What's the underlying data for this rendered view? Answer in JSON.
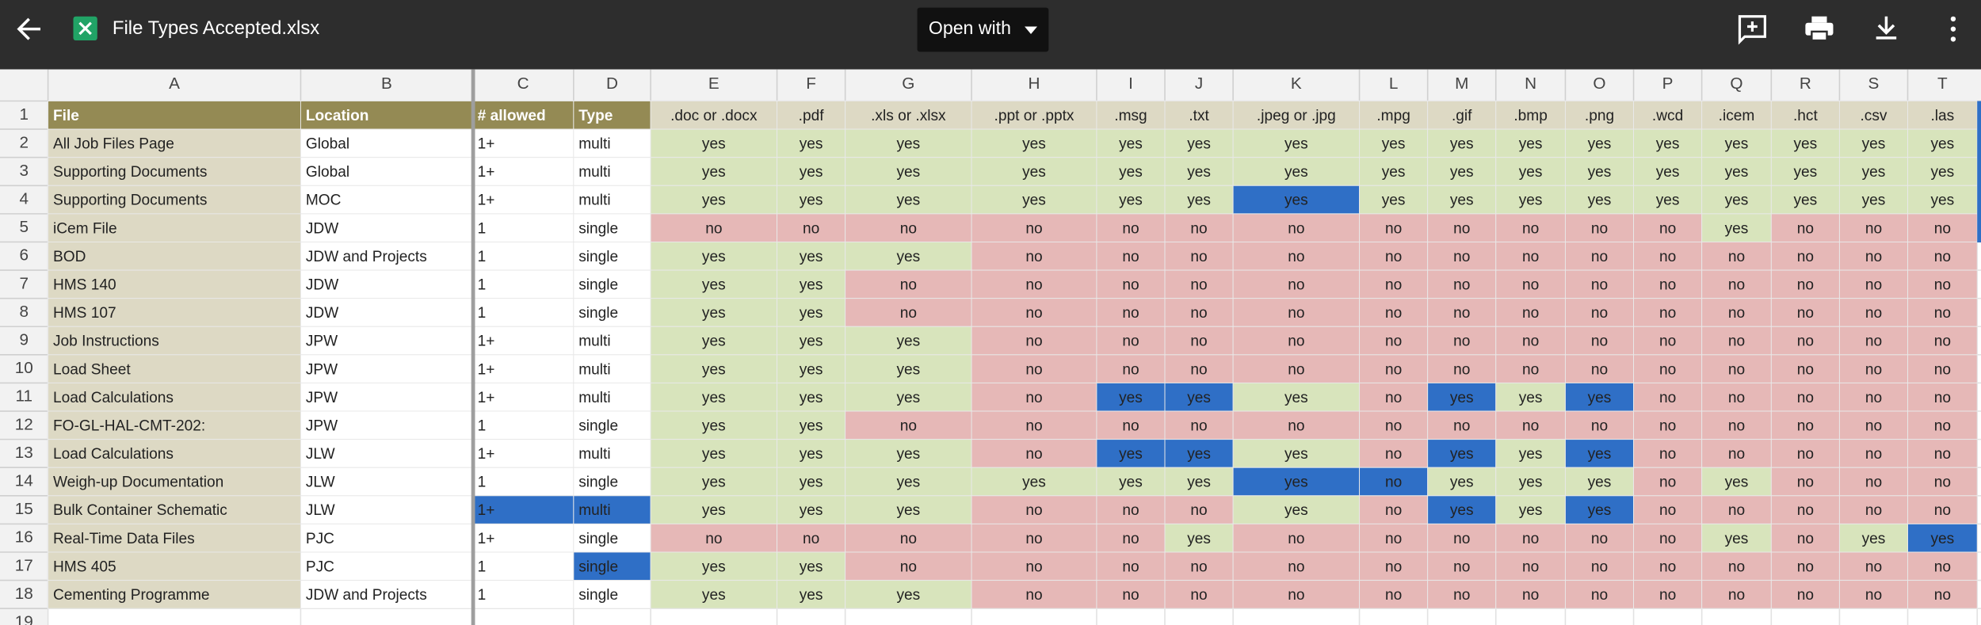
{
  "app_bar": {
    "file_name": "File Types Accepted.xlsx",
    "open_with": "Open with"
  },
  "sheet": {
    "column_letters": [
      "A",
      "B",
      "C",
      "D",
      "E",
      "F",
      "G",
      "H",
      "I",
      "J",
      "K",
      "L",
      "M",
      "N",
      "O",
      "P",
      "Q",
      "R",
      "S",
      "T"
    ],
    "row_numbers": [
      "1",
      "2",
      "3",
      "4",
      "5",
      "6",
      "7",
      "8",
      "9",
      "10",
      "11",
      "12",
      "13",
      "14",
      "15",
      "16",
      "17",
      "18",
      "19"
    ],
    "rows": [
      [
        "File",
        "Location",
        "# allowed",
        "Type",
        ".doc or .docx",
        ".pdf",
        ".xls or .xlsx",
        ".ppt or .pptx",
        ".msg",
        ".txt",
        ".jpeg or .jpg",
        ".mpg",
        ".gif",
        ".bmp",
        ".png",
        ".wcd",
        ".icem",
        ".hct",
        ".csv",
        ".las"
      ],
      [
        "All Job Files Page",
        "Global",
        "1+",
        "multi",
        "yes",
        "yes",
        "yes",
        "yes",
        "yes",
        "yes",
        "yes",
        "yes",
        "yes",
        "yes",
        "yes",
        "yes",
        "yes",
        "yes",
        "yes",
        "yes"
      ],
      [
        "Supporting Documents",
        "Global",
        "1+",
        "multi",
        "yes",
        "yes",
        "yes",
        "yes",
        "yes",
        "yes",
        "yes",
        "yes",
        "yes",
        "yes",
        "yes",
        "yes",
        "yes",
        "yes",
        "yes",
        "yes"
      ],
      [
        "Supporting Documents",
        "MOC",
        "1+",
        "multi",
        "yes",
        "yes",
        "yes",
        "yes",
        "yes",
        "yes",
        "yes",
        "yes",
        "yes",
        "yes",
        "yes",
        "yes",
        "yes",
        "yes",
        "yes",
        "yes"
      ],
      [
        "iCem File",
        "JDW",
        "1",
        "single",
        "no",
        "no",
        "no",
        "no",
        "no",
        "no",
        "no",
        "no",
        "no",
        "no",
        "no",
        "no",
        "yes",
        "no",
        "no",
        "no"
      ],
      [
        "BOD",
        "JDW and Projects",
        "1",
        "single",
        "yes",
        "yes",
        "yes",
        "no",
        "no",
        "no",
        "no",
        "no",
        "no",
        "no",
        "no",
        "no",
        "no",
        "no",
        "no",
        "no"
      ],
      [
        "HMS 140",
        "JDW",
        "1",
        "single",
        "yes",
        "yes",
        "no",
        "no",
        "no",
        "no",
        "no",
        "no",
        "no",
        "no",
        "no",
        "no",
        "no",
        "no",
        "no",
        "no"
      ],
      [
        "HMS 107",
        "JDW",
        "1",
        "single",
        "yes",
        "yes",
        "no",
        "no",
        "no",
        "no",
        "no",
        "no",
        "no",
        "no",
        "no",
        "no",
        "no",
        "no",
        "no",
        "no"
      ],
      [
        "Job Instructions",
        "JPW",
        "1+",
        "multi",
        "yes",
        "yes",
        "yes",
        "no",
        "no",
        "no",
        "no",
        "no",
        "no",
        "no",
        "no",
        "no",
        "no",
        "no",
        "no",
        "no"
      ],
      [
        "Load Sheet",
        "JPW",
        "1+",
        "multi",
        "yes",
        "yes",
        "yes",
        "no",
        "no",
        "no",
        "no",
        "no",
        "no",
        "no",
        "no",
        "no",
        "no",
        "no",
        "no",
        "no"
      ],
      [
        "Load Calculations",
        "JPW",
        "1+",
        "multi",
        "yes",
        "yes",
        "yes",
        "no",
        "yes",
        "yes",
        "yes",
        "no",
        "yes",
        "yes",
        "yes",
        "no",
        "no",
        "no",
        "no",
        "no"
      ],
      [
        "FO-GL-HAL-CMT-202:",
        "JPW",
        "1",
        "single",
        "yes",
        "yes",
        "no",
        "no",
        "no",
        "no",
        "no",
        "no",
        "no",
        "no",
        "no",
        "no",
        "no",
        "no",
        "no",
        "no"
      ],
      [
        "Load Calculations",
        "JLW",
        "1+",
        "multi",
        "yes",
        "yes",
        "yes",
        "no",
        "yes",
        "yes",
        "yes",
        "no",
        "yes",
        "yes",
        "yes",
        "no",
        "no",
        "no",
        "no",
        "no"
      ],
      [
        "Weigh-up Documentation",
        "JLW",
        "1",
        "single",
        "yes",
        "yes",
        "yes",
        "yes",
        "yes",
        "yes",
        "yes",
        "no",
        "yes",
        "yes",
        "yes",
        "no",
        "yes",
        "no",
        "no",
        "no"
      ],
      [
        "Bulk Container Schematic",
        "JLW",
        "1+",
        "multi",
        "yes",
        "yes",
        "yes",
        "no",
        "no",
        "no",
        "yes",
        "no",
        "yes",
        "yes",
        "yes",
        "no",
        "no",
        "no",
        "no",
        "no"
      ],
      [
        "Real-Time Data Files",
        "PJC",
        "1+",
        "single",
        "no",
        "no",
        "no",
        "no",
        "no",
        "yes",
        "no",
        "no",
        "no",
        "no",
        "no",
        "no",
        "yes",
        "no",
        "yes",
        "yes"
      ],
      [
        "HMS 405",
        "PJC",
        "1",
        "single",
        "yes",
        "yes",
        "no",
        "no",
        "no",
        "no",
        "no",
        "no",
        "no",
        "no",
        "no",
        "no",
        "no",
        "no",
        "no",
        "no"
      ],
      [
        "Cementing Programme",
        "JDW and Projects",
        "1",
        "single",
        "yes",
        "yes",
        "yes",
        "no",
        "no",
        "no",
        "no",
        "no",
        "no",
        "no",
        "no",
        "no",
        "no",
        "no",
        "no",
        "no"
      ]
    ],
    "value_fills": {
      "yes": "#d8e4bc",
      "no": "#e6b8b7"
    },
    "highlight_color": "#2f6fc6",
    "highlighted_cells": [
      "K4",
      "I11",
      "J11",
      "M11",
      "O11",
      "I13",
      "J13",
      "M13",
      "O13",
      "K14",
      "L14",
      "C15",
      "D15",
      "M15",
      "O15",
      "T16",
      "D17"
    ]
  }
}
